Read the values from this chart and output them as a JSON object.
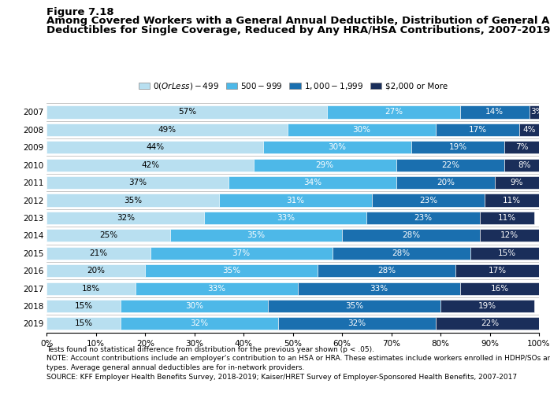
{
  "years": [
    "2007",
    "2008",
    "2009",
    "2010",
    "2011",
    "2012",
    "2013",
    "2014",
    "2015",
    "2016",
    "2017",
    "2018",
    "2019"
  ],
  "categories": [
    "$0 (Or Less) - $499",
    "$500 - $999",
    "$1,000 - $1,999",
    "$2,000 or More"
  ],
  "colors": [
    "#b8dff0",
    "#4db8e8",
    "#1a6faf",
    "#1a2e5a"
  ],
  "data": [
    [
      57,
      27,
      14,
      3
    ],
    [
      49,
      30,
      17,
      4
    ],
    [
      44,
      30,
      19,
      7
    ],
    [
      42,
      29,
      22,
      8
    ],
    [
      37,
      34,
      20,
      9
    ],
    [
      35,
      31,
      23,
      11
    ],
    [
      32,
      33,
      23,
      11
    ],
    [
      25,
      35,
      28,
      12
    ],
    [
      21,
      37,
      28,
      15
    ],
    [
      20,
      35,
      28,
      17
    ],
    [
      18,
      33,
      33,
      16
    ],
    [
      15,
      30,
      35,
      19
    ],
    [
      15,
      32,
      32,
      22
    ]
  ],
  "figure_label": "Figure 7.18",
  "title_line1": "Among Covered Workers with a General Annual Deductible, Distribution of General Annual",
  "title_line2": "Deductibles for Single Coverage, Reduced by Any HRA/HSA Contributions, 2007-2019",
  "footnote1": "Tests found no statistical difference from distribution for the previous year shown (p < .05).",
  "footnote2": "NOTE: Account contributions include an employer's contribution to an HSA or HRA. These estimates include workers enrolled in HDHP/SOs and other plan",
  "footnote3": "types. Average general annual deductibles are for in-network providers.",
  "footnote4": "SOURCE: KFF Employer Health Benefits Survey, 2018-2019; Kaiser/HRET Survey of Employer-Sponsored Health Benefits, 2007-2017",
  "bar_height": 0.72,
  "text_color_light": "white",
  "text_color_dark": "black",
  "fontsize_bars": 7.5,
  "fontsize_axis": 7.5,
  "fontsize_title": 9.5,
  "fontsize_figure_label": 9.5,
  "fontsize_legend": 7.5,
  "fontsize_footnote": 6.5
}
